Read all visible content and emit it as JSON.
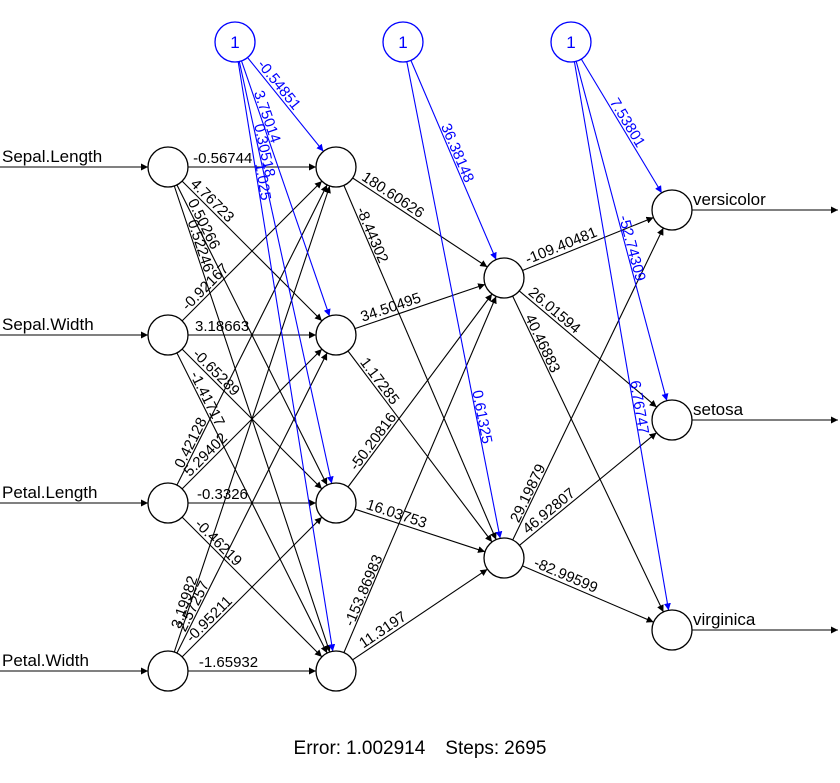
{
  "inputs": [
    "Sepal.Length",
    "Sepal.Width",
    "Petal.Length",
    "Petal.Width"
  ],
  "outputs": [
    "versicolor",
    "setosa",
    "virginica"
  ],
  "bias_label": "1",
  "weights": {
    "input_hidden1": [
      [
        "-0.56744",
        "4.76723",
        "0.50266",
        "0.52246"
      ],
      [
        "-0.92167",
        "3.18663",
        "-0.65289",
        "-1.41717"
      ],
      [
        "0.42128",
        "5.29402",
        "-0.3326",
        "-0.46219"
      ],
      [
        "3.19982",
        "2.57257",
        "-0.95211",
        "-1.65932"
      ]
    ],
    "bias_hidden1": [
      "-0.54851",
      "3.75014",
      "0.30518",
      "1.025"
    ],
    "hidden1_hidden2": [
      [
        "180.60626",
        "-8.44302"
      ],
      [
        "34.50495",
        "1.17285"
      ],
      [
        "-50.20816",
        "16.03753"
      ],
      [
        "-153.86983",
        "11.3197"
      ]
    ],
    "bias_hidden2": [
      "36.38148",
      "0.61325"
    ],
    "hidden2_output": [
      [
        "-109.40481",
        "26.01594",
        "40.46883"
      ],
      [
        "29.19879",
        "46.92807",
        "-82.99599"
      ]
    ],
    "bias_output": [
      "7.53801",
      "-52.74309",
      "6.76747"
    ]
  },
  "footer": {
    "error_label": "Error:",
    "error_value": "1.002914",
    "steps_label": "Steps:",
    "steps_value": "2695"
  },
  "colors": {
    "edge": "#000000",
    "bias": "#0000ff",
    "node_fill": "#ffffff"
  }
}
